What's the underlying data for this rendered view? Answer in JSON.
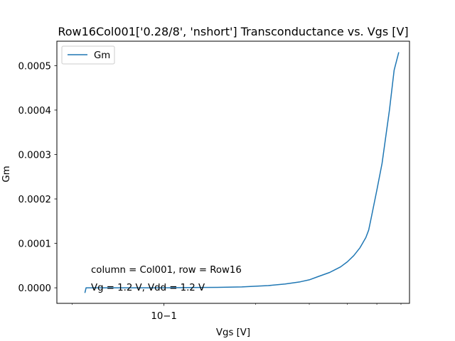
{
  "chart_data": {
    "type": "line",
    "title": "Row16Col001['0.28/8', 'nshort'] Transconductance vs. Vgs [V]",
    "xlabel": "Vgs [V]",
    "ylabel": "Gm",
    "xscale": "log",
    "xlim": [
      0.0445,
      0.64
    ],
    "ylim": [
      -3.5e-05,
      0.000555
    ],
    "x_major_ticks": [
      {
        "value": 0.1,
        "label": "10−1"
      }
    ],
    "x_minor_ticks": [
      0.05,
      0.2,
      0.3,
      0.4,
      0.5,
      0.6
    ],
    "y_ticks": [
      {
        "value": 0.0,
        "label": "0.0000"
      },
      {
        "value": 0.0001,
        "label": "0.0001"
      },
      {
        "value": 0.0002,
        "label": "0.0002"
      },
      {
        "value": 0.0003,
        "label": "0.0003"
      },
      {
        "value": 0.0004,
        "label": "0.0004"
      },
      {
        "value": 0.0005,
        "label": "0.0005"
      }
    ],
    "legend": {
      "position": "top-left",
      "entries": [
        "Gm"
      ]
    },
    "grid": false,
    "series": [
      {
        "name": "Gm",
        "color": "#1f77b4",
        "x": [
          0.055,
          0.0555,
          0.06,
          0.07,
          0.08,
          0.1,
          0.12,
          0.15,
          0.18,
          0.2,
          0.22,
          0.25,
          0.28,
          0.3,
          0.32,
          0.35,
          0.38,
          0.4,
          0.42,
          0.44,
          0.46,
          0.47,
          0.48,
          0.5,
          0.52,
          0.55,
          0.57,
          0.59
        ],
        "y": [
          -1.15e-05,
          0.0,
          0.0,
          0.0,
          0.0,
          0.0,
          5e-07,
          1e-06,
          2e-06,
          3.5e-06,
          5e-06,
          8.5e-06,
          1.35e-05,
          1.8e-05,
          2.5e-05,
          3.45e-05,
          4.7e-05,
          5.85e-05,
          7.25e-05,
          9e-05,
          0.000113,
          0.00013,
          0.00016,
          0.00022,
          0.00028,
          0.0004,
          0.00049,
          0.00053
        ]
      }
    ],
    "annotations": [
      "column = Col001, row = Row16",
      "Vg = 1.2 V, Vdd = 1.2 V"
    ]
  }
}
